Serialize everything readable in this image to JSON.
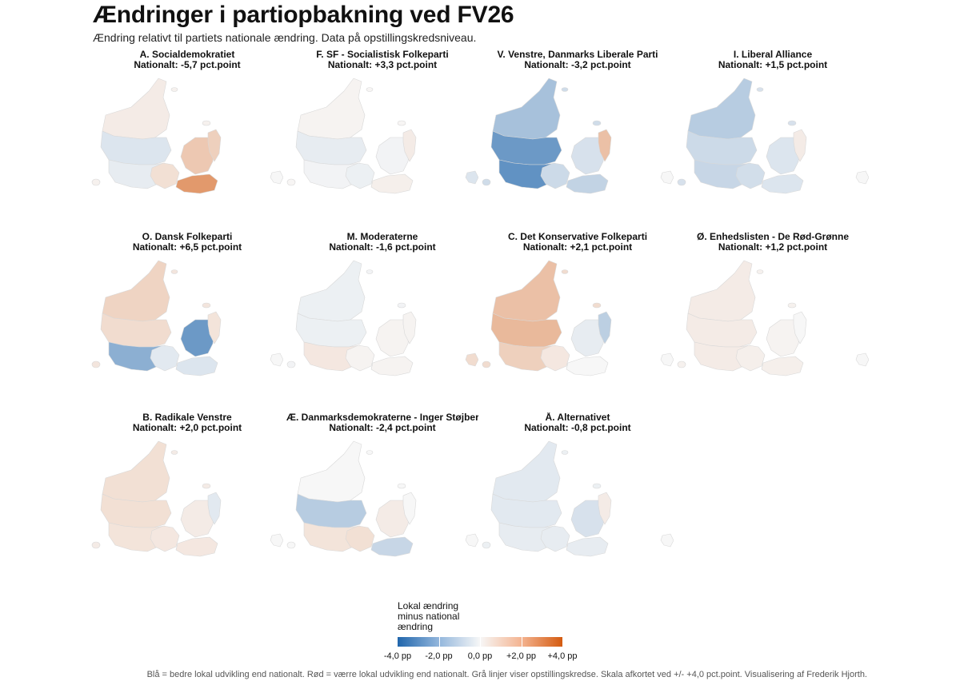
{
  "title": "Ændringer i partiopbakning ved FV26",
  "subtitle": "Ændring relativt til partiets nationale ændring. Data på opstillingskredsniveau.",
  "panels": [
    {
      "party": "A. Socialdemokratiet",
      "national": "Nationalt: -5,7 pct.point",
      "regions": {
        "north": 0.3,
        "west": -0.5,
        "south": -0.3,
        "fyn": 0.6,
        "zealand": 1.2,
        "cph": 1.0,
        "lolland": 2.4,
        "bornholm": 0.0
      }
    },
    {
      "party": "F. SF - Socialistisk Folkeparti",
      "national": "Nationalt: +3,3 pct.point",
      "regions": {
        "north": 0.1,
        "west": -0.3,
        "south": -0.1,
        "fyn": -0.2,
        "zealand": -0.1,
        "cph": 0.3,
        "lolland": 0.2,
        "bornholm": -0.5
      }
    },
    {
      "party": "V. Venstre, Danmarks Liberale Parti",
      "national": "Nationalt: -3,2 pct.point",
      "regions": {
        "north": -1.5,
        "west": -2.6,
        "south": -2.8,
        "fyn": -0.8,
        "zealand": -0.6,
        "cph": 1.4,
        "lolland": -1.0,
        "bornholm": 0.0
      }
    },
    {
      "party": "I. Liberal Alliance",
      "national": "Nationalt: +1,5 pct.point",
      "regions": {
        "north": -1.2,
        "west": -0.8,
        "south": -0.9,
        "fyn": -0.7,
        "zealand": -0.5,
        "cph": 0.3,
        "lolland": -0.5,
        "bornholm": 0.0
      }
    },
    {
      "party": "O. Dansk Folkeparti",
      "national": "Nationalt: +6,5 pct.point",
      "regions": {
        "north": 0.9,
        "west": 0.7,
        "south": -2.0,
        "fyn": -0.4,
        "zealand": -2.6,
        "cph": 0.5,
        "lolland": -0.5,
        "bornholm": 0.0
      }
    },
    {
      "party": "M. Moderaterne",
      "national": "Nationalt: -1,6 pct.point",
      "regions": {
        "north": -0.2,
        "west": -0.2,
        "south": 0.4,
        "fyn": 0.1,
        "zealand": 0.1,
        "cph": 0.1,
        "lolland": 0.1,
        "bornholm": 0.7
      }
    },
    {
      "party": "C. Det Konservative Folkeparti",
      "national": "Nationalt: +2,1 pct.point",
      "regions": {
        "north": 1.4,
        "west": 1.6,
        "south": 1.0,
        "fyn": 0.4,
        "zealand": -0.3,
        "cph": -1.1,
        "lolland": 0.0,
        "bornholm": 0.0
      }
    },
    {
      "party": "Ø. Enhedslisten - De Rød-Grønne",
      "national": "Nationalt: +1,2 pct.point",
      "regions": {
        "north": 0.3,
        "west": 0.3,
        "south": 0.3,
        "fyn": 0.2,
        "zealand": 0.1,
        "cph": 0.0,
        "lolland": 0.2,
        "bornholm": 0.0
      }
    },
    {
      "party": "B. Radikale Venstre",
      "national": "Nationalt: +2,0 pct.point",
      "regions": {
        "north": 0.6,
        "west": 0.6,
        "south": 0.5,
        "fyn": 0.4,
        "zealand": 0.3,
        "cph": -0.4,
        "lolland": 0.4,
        "bornholm": 0.0
      }
    },
    {
      "party": "Æ. Danmarksdemokraterne - Inger Støjberg",
      "national": "Nationalt: -2,4 pct.point",
      "regions": {
        "north": 0.0,
        "west": -1.2,
        "south": 0.5,
        "fyn": 0.6,
        "zealand": 0.3,
        "cph": 0.0,
        "lolland": -0.9,
        "bornholm": 0.0
      }
    },
    {
      "party": "Å. Alternativet",
      "national": "Nationalt: -0,8 pct.point",
      "regions": {
        "north": -0.4,
        "west": -0.4,
        "south": -0.3,
        "fyn": -0.3,
        "zealand": -0.6,
        "cph": 0.3,
        "lolland": -0.3,
        "bornholm": 0.0
      }
    }
  ],
  "legend": {
    "title_lines": [
      "Lokal ændring",
      "minus national",
      "ændring"
    ],
    "min": -4,
    "max": 4,
    "ticks": [
      {
        "value": -4,
        "label": "-4,0 pp"
      },
      {
        "value": -2,
        "label": "-2,0 pp"
      },
      {
        "value": 0,
        "label": "0,0 pp"
      },
      {
        "value": 2,
        "label": "+2,0 pp"
      },
      {
        "value": 4,
        "label": "+4,0 pp"
      }
    ],
    "colors": {
      "low": "#2166ac",
      "mid": "#f7f7f7",
      "high": "#d45b10"
    }
  },
  "caption": "Blå = bedre lokal udvikling end nationalt. Rød = værre lokal udvikling end nationalt. Grå linjer viser opstillingskredse. Skala afkortet ved +/- +4,0 pct.point. Visualisering af Frederik Hjorth."
}
